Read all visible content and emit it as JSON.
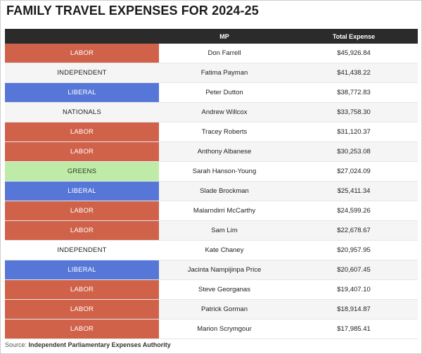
{
  "title": "FAMILY TRAVEL EXPENSES FOR 2024-25",
  "source_prefix": "Source:",
  "source_text": "Independent Parliamentary Expenses Authority",
  "party_colors": {
    "LABOR": "#d0624a",
    "LIBERAL": "#5677d8",
    "GREENS": "#bfeba8",
    "INDEPENDENT": "",
    "NATIONALS": ""
  },
  "chart_data": {
    "type": "table",
    "columns": [
      "",
      "MP",
      "Total Expense"
    ],
    "rows": [
      {
        "party": "LABOR",
        "mp": "Don Farrell",
        "expense": "$45,926.84"
      },
      {
        "party": "INDEPENDENT",
        "mp": "Fatima Payman",
        "expense": "$41,438.22"
      },
      {
        "party": "LIBERAL",
        "mp": "Peter Dutton",
        "expense": "$38,772.83"
      },
      {
        "party": "NATIONALS",
        "mp": "Andrew Willcox",
        "expense": "$33,758.30"
      },
      {
        "party": "LABOR",
        "mp": "Tracey Roberts",
        "expense": "$31,120.37"
      },
      {
        "party": "LABOR",
        "mp": "Anthony Albanese",
        "expense": "$30,253.08"
      },
      {
        "party": "GREENS",
        "mp": "Sarah Hanson-Young",
        "expense": "$27,024.09"
      },
      {
        "party": "LIBERAL",
        "mp": "Slade Brockman",
        "expense": "$25,411.34"
      },
      {
        "party": "LABOR",
        "mp": "Malarndirri McCarthy",
        "expense": "$24,599.26"
      },
      {
        "party": "LABOR",
        "mp": "Sam Lim",
        "expense": "$22,678.67"
      },
      {
        "party": "INDEPENDENT",
        "mp": "Kate Chaney",
        "expense": "$20,957.95"
      },
      {
        "party": "LIBERAL",
        "mp": "Jacinta Nampijinpa Price",
        "expense": "$20,607.45"
      },
      {
        "party": "LABOR",
        "mp": "Steve Georganas",
        "expense": "$19,407.10"
      },
      {
        "party": "LABOR",
        "mp": "Patrick Gorman",
        "expense": "$18,914.87"
      },
      {
        "party": "LABOR",
        "mp": "Marion Scrymgour",
        "expense": "$17,985.41"
      }
    ]
  }
}
